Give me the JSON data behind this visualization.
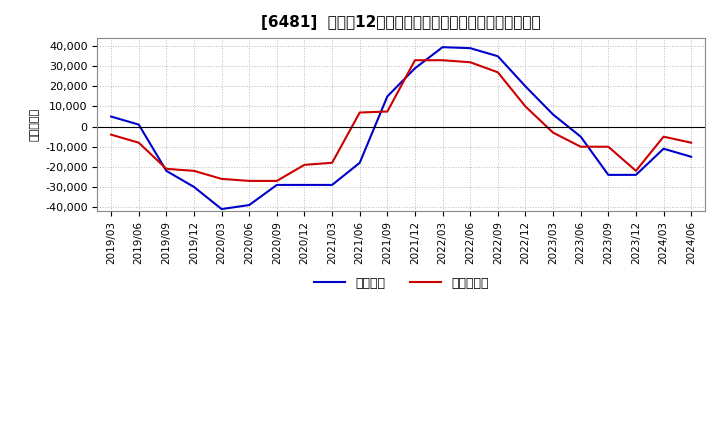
{
  "title": "[6481]  利益の12か月移動合計の対前年同期増減額の推移",
  "ylabel": "（百万円）",
  "ylim": [
    -42000,
    44000
  ],
  "yticks": [
    -40000,
    -30000,
    -20000,
    -10000,
    0,
    10000,
    20000,
    30000,
    40000
  ],
  "legend_labels": [
    "経常利益",
    "当期純利益"
  ],
  "colors": [
    "#0000cc",
    "#cc0000"
  ],
  "dates": [
    "2019/03",
    "2019/06",
    "2019/09",
    "2019/12",
    "2020/03",
    "2020/06",
    "2020/09",
    "2020/12",
    "2021/03",
    "2021/06",
    "2021/09",
    "2021/12",
    "2022/03",
    "2022/06",
    "2022/09",
    "2022/12",
    "2023/03",
    "2023/06",
    "2023/09",
    "2023/12",
    "2024/03",
    "2024/06"
  ],
  "keijo_rieki": [
    5000,
    1000,
    -22000,
    -30000,
    -41000,
    -39000,
    -29000,
    -29000,
    -29000,
    -18000,
    15000,
    29000,
    39500,
    39000,
    35000,
    20000,
    6000,
    -5000,
    -24000,
    -24000,
    -11000,
    -15000
  ],
  "junrieki": [
    -4000,
    -8000,
    -21000,
    -22000,
    -26000,
    -27000,
    -27000,
    -19000,
    -18000,
    7000,
    7500,
    33000,
    33000,
    32000,
    27000,
    10000,
    -3000,
    -10000,
    -10000,
    -22000,
    -5000,
    -8000
  ],
  "background_color": "#ffffff",
  "grid_color": "#aaaaaa"
}
